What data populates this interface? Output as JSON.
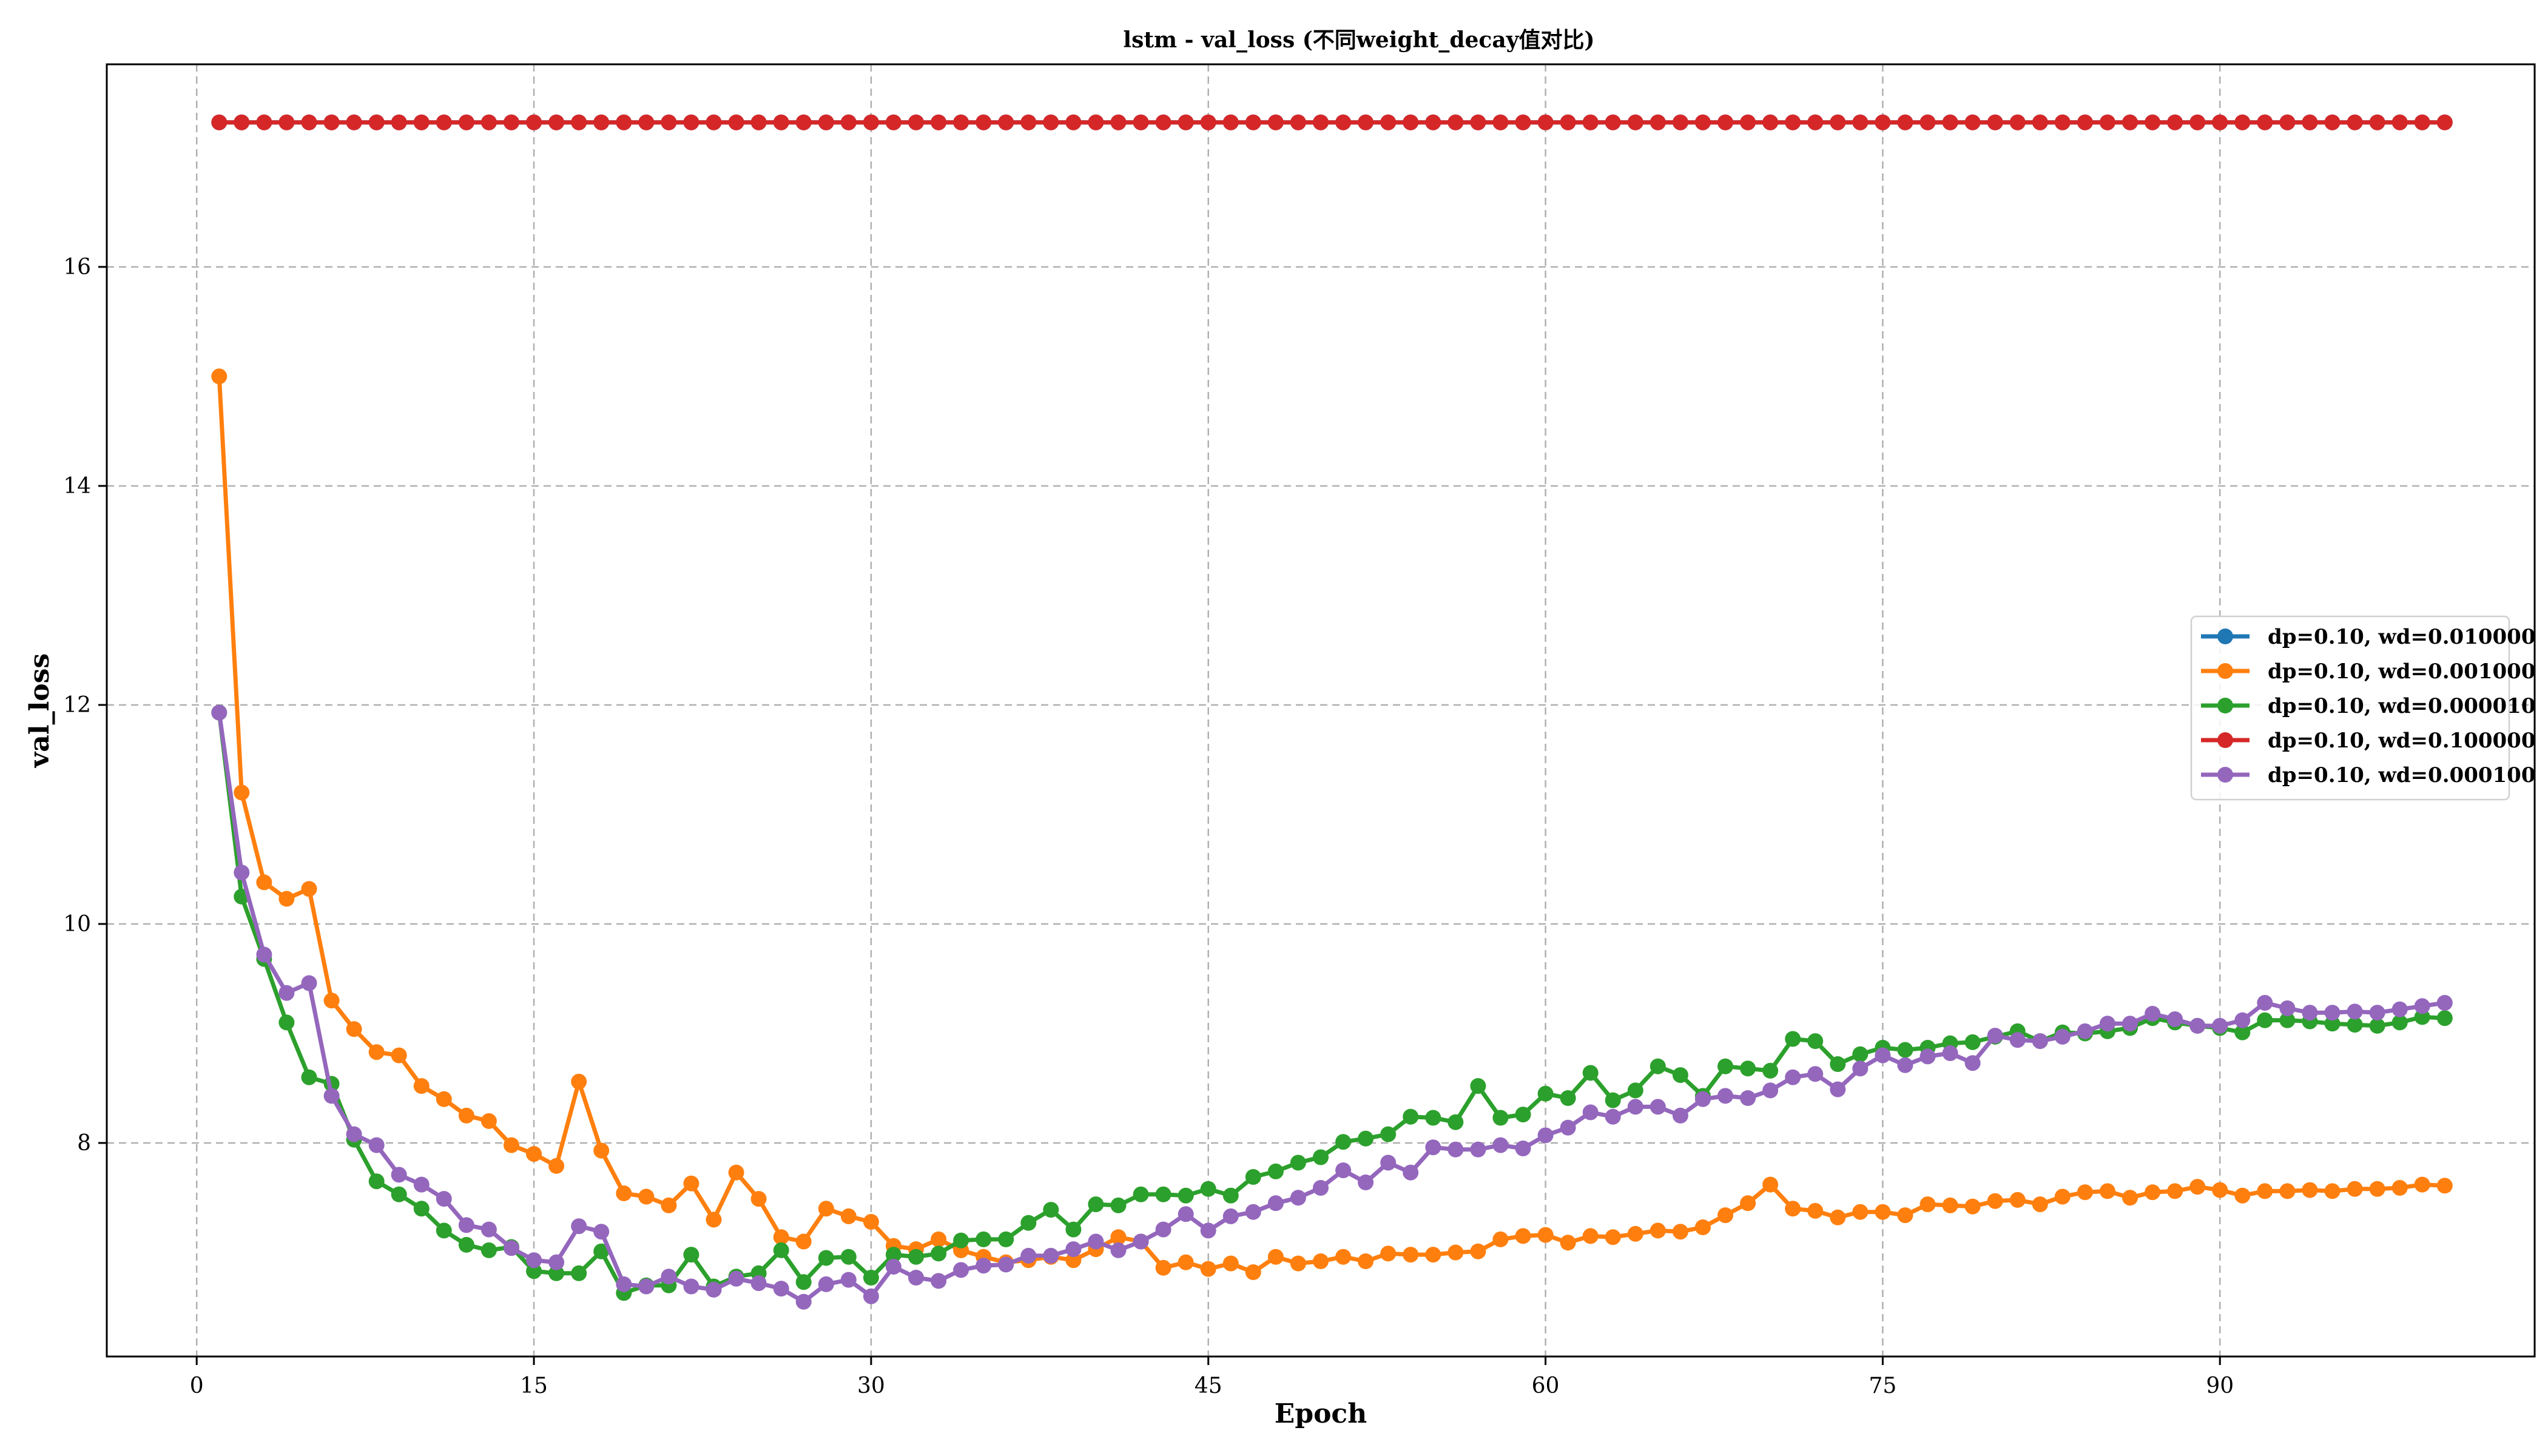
{
  "chart_data": {
    "type": "line",
    "title": "lstm - val_loss (不同weight_decay值对比)",
    "xlabel": "Epoch",
    "ylabel": "val_loss",
    "xlim": [
      -4,
      104
    ],
    "ylim": [
      6.05,
      17.85
    ],
    "xticks": [
      0,
      15,
      30,
      45,
      60,
      75,
      90
    ],
    "yticks": [
      8,
      10,
      12,
      14,
      16
    ],
    "grid": true,
    "legend_position": "center-right",
    "x": [
      1,
      2,
      3,
      4,
      5,
      6,
      7,
      8,
      9,
      10,
      11,
      12,
      13,
      14,
      15,
      16,
      17,
      18,
      19,
      20,
      21,
      22,
      23,
      24,
      25,
      26,
      27,
      28,
      29,
      30,
      31,
      32,
      33,
      34,
      35,
      36,
      37,
      38,
      39,
      40,
      41,
      42,
      43,
      44,
      45,
      46,
      47,
      48,
      49,
      50,
      51,
      52,
      53,
      54,
      55,
      56,
      57,
      58,
      59,
      60,
      61,
      62,
      63,
      64,
      65,
      66,
      67,
      68,
      69,
      70,
      71,
      72,
      73,
      74,
      75,
      76,
      77,
      78,
      79,
      80,
      81,
      82,
      83,
      84,
      85,
      86,
      87,
      88,
      89,
      90,
      91,
      92,
      93,
      94,
      95,
      96,
      97,
      98,
      99,
      100
    ],
    "series": [
      {
        "name": "dp=0.10, wd=0.010000",
        "color": "#1f77b4",
        "values": [
          17.32,
          17.32,
          17.32,
          17.32,
          17.32,
          17.32,
          17.32,
          17.32,
          17.32,
          17.32,
          17.32,
          17.32,
          17.32,
          17.32,
          17.32,
          17.32,
          17.32,
          17.32,
          17.32,
          17.32,
          17.32,
          17.32,
          17.32,
          17.32,
          17.32,
          17.32,
          17.32,
          17.32,
          17.32,
          17.32,
          17.32,
          17.32,
          17.32,
          17.32,
          17.32,
          17.32,
          17.32,
          17.32,
          17.32,
          17.32,
          17.32,
          17.32,
          17.32,
          17.32,
          17.32,
          17.32,
          17.32,
          17.32,
          17.32,
          17.32,
          17.32,
          17.32,
          17.32,
          17.32,
          17.32,
          17.32,
          17.32,
          17.32,
          17.32,
          17.32,
          17.32,
          17.32,
          17.32,
          17.32,
          17.32,
          17.32,
          17.32,
          17.32,
          17.32,
          17.32,
          17.32,
          17.32,
          17.32,
          17.32,
          17.32,
          17.32,
          17.32,
          17.32,
          17.32,
          17.32,
          17.32,
          17.32,
          17.32,
          17.32,
          17.32,
          17.32,
          17.32,
          17.32,
          17.32,
          17.32,
          17.32,
          17.32,
          17.32,
          17.32,
          17.32,
          17.32,
          17.32,
          17.32,
          17.32,
          17.32
        ]
      },
      {
        "name": "dp=0.10, wd=0.001000",
        "color": "#ff7f0e",
        "values": [
          15.0,
          11.2,
          10.38,
          10.23,
          10.32,
          9.3,
          9.04,
          8.83,
          8.8,
          8.52,
          8.4,
          8.25,
          8.2,
          7.98,
          7.9,
          7.79,
          8.56,
          7.93,
          7.54,
          7.51,
          7.43,
          7.63,
          7.3,
          7.73,
          7.49,
          7.14,
          7.1,
          7.4,
          7.33,
          7.28,
          7.06,
          7.03,
          7.12,
          7.02,
          6.96,
          6.91,
          6.93,
          6.96,
          6.93,
          7.03,
          7.14,
          7.1,
          6.86,
          6.91,
          6.85,
          6.9,
          6.82,
          6.96,
          6.9,
          6.92,
          6.96,
          6.92,
          6.99,
          6.98,
          6.98,
          7.0,
          7.01,
          7.12,
          7.15,
          7.16,
          7.09,
          7.15,
          7.14,
          7.17,
          7.2,
          7.19,
          7.23,
          7.34,
          7.45,
          7.62,
          7.4,
          7.38,
          7.32,
          7.37,
          7.37,
          7.34,
          7.44,
          7.43,
          7.42,
          7.47,
          7.48,
          7.44,
          7.51,
          7.55,
          7.56,
          7.5,
          7.55,
          7.56,
          7.6,
          7.57,
          7.52,
          7.56,
          7.56,
          7.57,
          7.56,
          7.58,
          7.58,
          7.59,
          7.62,
          7.61
        ]
      },
      {
        "name": "dp=0.10, wd=0.000010",
        "color": "#2ca02c",
        "values": [
          11.93,
          10.25,
          9.68,
          9.1,
          8.6,
          8.54,
          8.03,
          7.65,
          7.53,
          7.4,
          7.2,
          7.07,
          7.02,
          7.05,
          6.83,
          6.81,
          6.81,
          7.01,
          6.63,
          6.7,
          6.7,
          6.98,
          6.69,
          6.78,
          6.81,
          7.02,
          6.73,
          6.95,
          6.96,
          6.77,
          6.98,
          6.96,
          6.99,
          7.11,
          7.12,
          7.12,
          7.27,
          7.39,
          7.21,
          7.44,
          7.43,
          7.53,
          7.53,
          7.52,
          7.58,
          7.52,
          7.69,
          7.74,
          7.82,
          7.87,
          8.01,
          8.04,
          8.08,
          8.24,
          8.23,
          8.19,
          8.52,
          8.23,
          8.26,
          8.45,
          8.41,
          8.64,
          8.39,
          8.48,
          8.7,
          8.62,
          8.43,
          8.7,
          8.68,
          8.66,
          8.95,
          8.93,
          8.72,
          8.81,
          8.87,
          8.85,
          8.87,
          8.91,
          8.92,
          8.97,
          9.02,
          8.93,
          9.01,
          9.0,
          9.02,
          9.05,
          9.14,
          9.1,
          9.07,
          9.05,
          9.01,
          9.12,
          9.12,
          9.11,
          9.09,
          9.08,
          9.07,
          9.1,
          9.15,
          9.14
        ]
      },
      {
        "name": "dp=0.10, wd=0.100000",
        "color": "#d62728",
        "values": [
          17.32,
          17.32,
          17.32,
          17.32,
          17.32,
          17.32,
          17.32,
          17.32,
          17.32,
          17.32,
          17.32,
          17.32,
          17.32,
          17.32,
          17.32,
          17.32,
          17.32,
          17.32,
          17.32,
          17.32,
          17.32,
          17.32,
          17.32,
          17.32,
          17.32,
          17.32,
          17.32,
          17.32,
          17.32,
          17.32,
          17.32,
          17.32,
          17.32,
          17.32,
          17.32,
          17.32,
          17.32,
          17.32,
          17.32,
          17.32,
          17.32,
          17.32,
          17.32,
          17.32,
          17.32,
          17.32,
          17.32,
          17.32,
          17.32,
          17.32,
          17.32,
          17.32,
          17.32,
          17.32,
          17.32,
          17.32,
          17.32,
          17.32,
          17.32,
          17.32,
          17.32,
          17.32,
          17.32,
          17.32,
          17.32,
          17.32,
          17.32,
          17.32,
          17.32,
          17.32,
          17.32,
          17.32,
          17.32,
          17.32,
          17.32,
          17.32,
          17.32,
          17.32,
          17.32,
          17.32,
          17.32,
          17.32,
          17.32,
          17.32,
          17.32,
          17.32,
          17.32,
          17.32,
          17.32,
          17.32,
          17.32,
          17.32,
          17.32,
          17.32,
          17.32,
          17.32,
          17.32,
          17.32,
          17.32,
          17.32
        ]
      },
      {
        "name": "dp=0.10, wd=0.000100",
        "color": "#9467bd",
        "values": [
          11.93,
          10.47,
          9.72,
          9.37,
          9.46,
          8.43,
          8.08,
          7.98,
          7.71,
          7.62,
          7.49,
          7.25,
          7.21,
          7.04,
          6.93,
          6.91,
          7.24,
          7.19,
          6.71,
          6.69,
          6.78,
          6.69,
          6.66,
          6.76,
          6.72,
          6.67,
          6.55,
          6.71,
          6.75,
          6.6,
          6.87,
          6.77,
          6.74,
          6.84,
          6.88,
          6.89,
          6.97,
          6.97,
          7.03,
          7.1,
          7.02,
          7.1,
          7.21,
          7.35,
          7.2,
          7.33,
          7.37,
          7.45,
          7.5,
          7.59,
          7.75,
          7.64,
          7.82,
          7.73,
          7.96,
          7.94,
          7.94,
          7.98,
          7.95,
          8.07,
          8.14,
          8.28,
          8.24,
          8.33,
          8.33,
          8.25,
          8.4,
          8.43,
          8.41,
          8.48,
          8.6,
          8.63,
          8.49,
          8.68,
          8.8,
          8.71,
          8.79,
          8.82,
          8.73,
          8.98,
          8.94,
          8.93,
          8.97,
          9.02,
          9.09,
          9.09,
          9.18,
          9.13,
          9.07,
          9.07,
          9.12,
          9.28,
          9.23,
          9.19,
          9.19,
          9.2,
          9.19,
          9.22,
          9.25,
          9.28
        ]
      }
    ]
  }
}
